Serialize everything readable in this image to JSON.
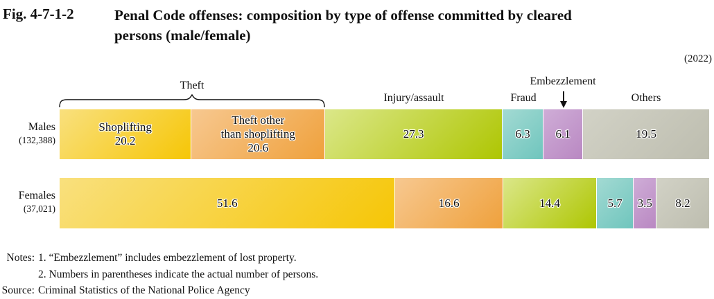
{
  "figure": {
    "number": "Fig. 4-7-1-2",
    "title_line1": "Penal Code offenses: composition by type of offense committed by cleared",
    "title_line2": "persons (male/female)",
    "year_label": "(2022)"
  },
  "header_labels": {
    "theft": "Theft",
    "injury_assault": "Injury/assault",
    "fraud": "Fraud",
    "embezzlement": "Embezzlement",
    "others": "Others"
  },
  "chart_data": {
    "type": "bar",
    "subtype": "stacked-horizontal-percentage",
    "unit": "%",
    "xlim": [
      0,
      100
    ],
    "segment_names": [
      "Shoplifting",
      "Theft other than shoplifting",
      "Injury/assault",
      "Fraud",
      "Embezzlement",
      "Others"
    ],
    "segment_keys": [
      "shoplifting",
      "theft-other-than-shoplifting",
      "injury-assault",
      "fraud",
      "embezzlement",
      "others"
    ],
    "group_label": {
      "name": "Theft",
      "covers": [
        "Shoplifting",
        "Theft other than shoplifting"
      ]
    },
    "segment_colors": [
      {
        "light": "#f9e07e",
        "dark": "#f6c606"
      },
      {
        "light": "#f7c890",
        "dark": "#efa13c"
      },
      {
        "light": "#dbe789",
        "dark": "#aec602"
      },
      {
        "light": "#a3dad3",
        "dark": "#6fc5bd"
      },
      {
        "light": "#cfadd7",
        "dark": "#b988c2"
      },
      {
        "light": "#d2d2c6",
        "dark": "#bdbdaf"
      }
    ],
    "rows": [
      {
        "name": "Males",
        "count_label": "(132,388)",
        "values": [
          20.2,
          20.6,
          27.3,
          6.3,
          6.1,
          19.5
        ],
        "segment_labels": [
          [
            "Shoplifting",
            "20.2"
          ],
          [
            "Theft other",
            "than shoplifting",
            "20.6"
          ],
          [
            "27.3"
          ],
          [
            "6.3"
          ],
          [
            "6.1"
          ],
          [
            "19.5"
          ]
        ]
      },
      {
        "name": "Females",
        "count_label": "(37,021)",
        "values": [
          51.6,
          16.6,
          14.4,
          5.7,
          3.5,
          8.2
        ],
        "segment_labels": [
          [
            "51.6"
          ],
          [
            "16.6"
          ],
          [
            "14.4"
          ],
          [
            "5.7"
          ],
          [
            "3.5"
          ],
          [
            "8.2"
          ]
        ]
      }
    ]
  },
  "notes": {
    "label": "Notes:",
    "items": [
      "1. “Embezzlement” includes embezzlement of lost property.",
      "2. Numbers in parentheses indicate the actual number of persons."
    ],
    "source_label": "Source:",
    "source_text": "Criminal Statistics of the National Police Agency"
  }
}
